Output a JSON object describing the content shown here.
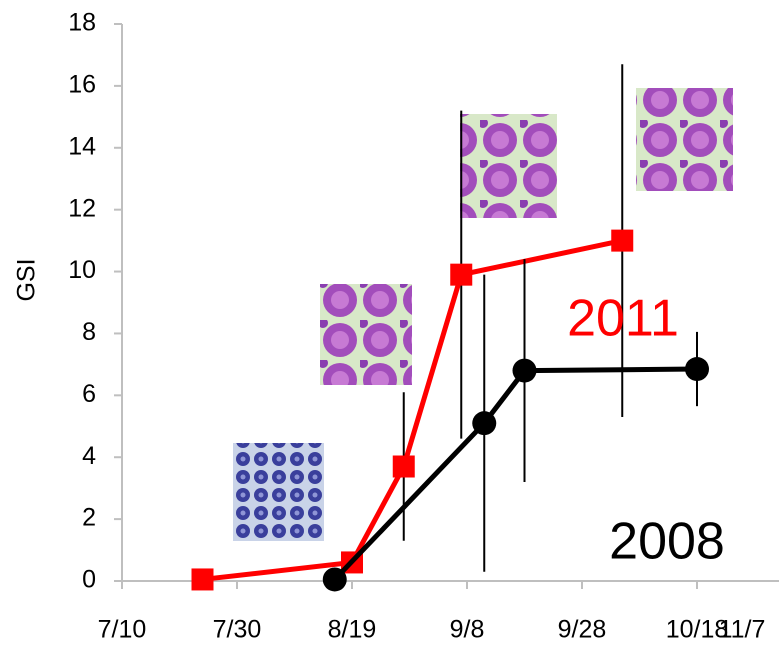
{
  "chart_data": {
    "type": "line",
    "y_label": "GSI",
    "xlim": [
      "7/10",
      "11/7"
    ],
    "xticks": [
      "7/10",
      "7/30",
      "8/19",
      "9/8",
      "9/28",
      "10/18",
      "11/7"
    ],
    "ylim": [
      0,
      18
    ],
    "yticks": [
      0,
      2,
      4,
      6,
      8,
      10,
      12,
      14,
      16,
      18
    ],
    "series": [
      {
        "name": "2011",
        "color": "#ff0000",
        "marker": "square",
        "x": [
          "7/24",
          "8/19",
          "8/28",
          "9/7",
          "10/5"
        ],
        "values": [
          0.05,
          0.6,
          3.7,
          9.9,
          11.0
        ],
        "errors": [
          null,
          null,
          2.4,
          5.3,
          5.7
        ]
      },
      {
        "name": "2008",
        "color": "#000000",
        "marker": "circle",
        "x": [
          "8/16",
          "9/11",
          "9/18",
          "10/18"
        ],
        "values": [
          0.05,
          5.1,
          6.8,
          6.85
        ],
        "errors": [
          null,
          4.8,
          3.6,
          1.2
        ]
      }
    ]
  }
}
